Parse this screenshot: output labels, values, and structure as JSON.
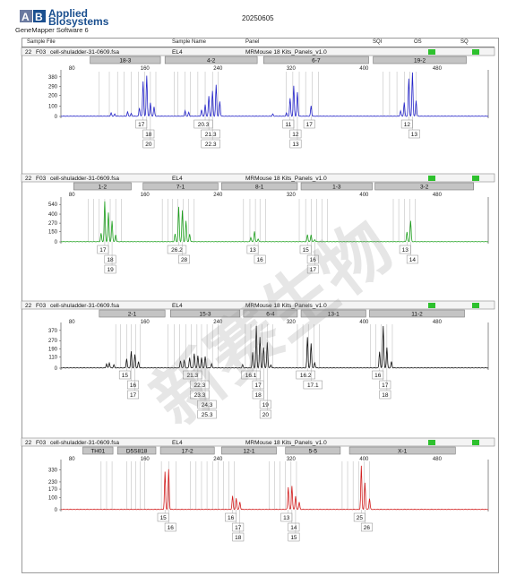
{
  "header": {
    "brand_line1": "Applied",
    "brand_line2": "Biosystems",
    "software": "GeneMapper Software 6",
    "date": "20250605",
    "columns": {
      "sample_file": "Sample File",
      "sample_name": "Sample Name",
      "panel": "Panel",
      "sqi": "SQI",
      "os": "OS",
      "sq": "SQ"
    }
  },
  "watermark": "新赛生物",
  "colors": {
    "blue": "#2323c8",
    "green": "#1ea01e",
    "black": "#111111",
    "red": "#d21e1e",
    "flag": "#2ec12e",
    "bin": "#b4b4b4",
    "marker_fill": "#c4c4c4"
  },
  "chart_data": [
    {
      "type": "line",
      "info": {
        "well": "22",
        "cap": "F03",
        "sample_file": "cell-shuladder-31-0609.fsa",
        "sample_name": "EL4",
        "panel": "MRMouse 18 Kits_Panels_v1.0"
      },
      "color": "#2323c8",
      "markers": [
        {
          "label": "18-3",
          "start": 100,
          "end": 177
        },
        {
          "label": "4-2",
          "start": 182,
          "end": 283
        },
        {
          "label": "6-7",
          "start": 290,
          "end": 405
        },
        {
          "label": "19-2",
          "start": 410,
          "end": 512
        }
      ],
      "x_ticks": [
        80,
        160,
        240,
        320,
        400,
        480
      ],
      "xlim": [
        68,
        536
      ],
      "y_ticks": [
        0,
        100,
        200,
        290,
        380
      ],
      "ylim": [
        0,
        430
      ],
      "peaks": [
        {
          "x": 123,
          "h": 30
        },
        {
          "x": 127,
          "h": 20
        },
        {
          "x": 141,
          "h": 40
        },
        {
          "x": 145,
          "h": 25
        },
        {
          "x": 154,
          "h": 80
        },
        {
          "x": 158,
          "h": 335
        },
        {
          "x": 162,
          "h": 390
        },
        {
          "x": 166,
          "h": 130
        },
        {
          "x": 170,
          "h": 90
        },
        {
          "x": 204,
          "h": 50
        },
        {
          "x": 208,
          "h": 35
        },
        {
          "x": 222,
          "h": 60
        },
        {
          "x": 226,
          "h": 110
        },
        {
          "x": 230,
          "h": 190
        },
        {
          "x": 234,
          "h": 240
        },
        {
          "x": 238,
          "h": 300
        },
        {
          "x": 242,
          "h": 140
        },
        {
          "x": 300,
          "h": 20
        },
        {
          "x": 315,
          "h": 30
        },
        {
          "x": 319,
          "h": 170
        },
        {
          "x": 323,
          "h": 290
        },
        {
          "x": 327,
          "h": 230
        },
        {
          "x": 342,
          "h": 100
        },
        {
          "x": 440,
          "h": 50
        },
        {
          "x": 444,
          "h": 130
        },
        {
          "x": 449,
          "h": 360
        },
        {
          "x": 453,
          "h": 420
        },
        {
          "x": 457,
          "h": 150
        }
      ],
      "bins": [
        110,
        121,
        130,
        137,
        145,
        153,
        160,
        166,
        172,
        192,
        196,
        204,
        210,
        218,
        226,
        234,
        240,
        315,
        322,
        329,
        336,
        343,
        350,
        421,
        428,
        436,
        444,
        450,
        457
      ],
      "alleles": [
        {
          "x": 158,
          "row": 0,
          "label": "17"
        },
        {
          "x": 162,
          "row": 1,
          "label": "18"
        },
        {
          "x": 166,
          "row": 2,
          "label": "20"
        },
        {
          "x": 226,
          "row": 0,
          "label": "20.3"
        },
        {
          "x": 230,
          "row": 1,
          "label": "21.3"
        },
        {
          "x": 234,
          "row": 2,
          "label": "22.3"
        },
        {
          "x": 319,
          "row": 0,
          "label": "11"
        },
        {
          "x": 323,
          "row": 1,
          "label": "12"
        },
        {
          "x": 327,
          "row": 2,
          "label": "13"
        },
        {
          "x": 342,
          "row": 0,
          "label": "17"
        },
        {
          "x": 449,
          "row": 0,
          "label": "12"
        },
        {
          "x": 453,
          "row": 1,
          "label": "13"
        }
      ]
    },
    {
      "type": "line",
      "info": {
        "well": "22",
        "cap": "F03",
        "sample_file": "cell-shuladder-31-0609.fsa",
        "sample_name": "EL4",
        "panel": "MRMouse 18 Kits_Panels_v1.0"
      },
      "color": "#1ea01e",
      "markers": [
        {
          "label": "1-2",
          "start": 82,
          "end": 145
        },
        {
          "label": "7-1",
          "start": 158,
          "end": 240
        },
        {
          "label": "8-1",
          "start": 244,
          "end": 327
        },
        {
          "label": "1-3",
          "start": 331,
          "end": 409
        },
        {
          "label": "3-2",
          "start": 412,
          "end": 520
        }
      ],
      "x_ticks": [
        80,
        160,
        240,
        320,
        400,
        480
      ],
      "xlim": [
        68,
        536
      ],
      "y_ticks": [
        0,
        150,
        270,
        400,
        540
      ],
      "ylim": [
        0,
        620
      ],
      "peaks": [
        {
          "x": 112,
          "h": 120
        },
        {
          "x": 116,
          "h": 580
        },
        {
          "x": 120,
          "h": 420
        },
        {
          "x": 124,
          "h": 300
        },
        {
          "x": 128,
          "h": 100
        },
        {
          "x": 193,
          "h": 110
        },
        {
          "x": 197,
          "h": 500
        },
        {
          "x": 201,
          "h": 450
        },
        {
          "x": 205,
          "h": 300
        },
        {
          "x": 209,
          "h": 110
        },
        {
          "x": 276,
          "h": 60
        },
        {
          "x": 280,
          "h": 150
        },
        {
          "x": 284,
          "h": 40
        },
        {
          "x": 338,
          "h": 100
        },
        {
          "x": 342,
          "h": 100
        },
        {
          "x": 346,
          "h": 30
        },
        {
          "x": 447,
          "h": 140
        },
        {
          "x": 451,
          "h": 300
        }
      ],
      "bins": [
        98,
        104,
        110,
        116,
        122,
        128,
        134,
        179,
        185,
        190,
        196,
        202,
        208,
        214,
        268,
        275,
        281,
        286,
        292,
        329,
        336,
        342,
        348,
        354,
        360,
        432,
        438,
        444,
        450,
        456
      ],
      "alleles": [
        {
          "x": 116,
          "row": 0,
          "label": "17"
        },
        {
          "x": 120,
          "row": 1,
          "label": "18"
        },
        {
          "x": 124,
          "row": 2,
          "label": "19"
        },
        {
          "x": 197,
          "row": 0,
          "label": "26.2"
        },
        {
          "x": 201,
          "row": 1,
          "label": "28"
        },
        {
          "x": 280,
          "row": 0,
          "label": "13"
        },
        {
          "x": 284,
          "row": 1,
          "label": "16"
        },
        {
          "x": 338,
          "row": 0,
          "label": "15"
        },
        {
          "x": 342,
          "row": 1,
          "label": "16"
        },
        {
          "x": 346,
          "row": 2,
          "label": "17"
        },
        {
          "x": 447,
          "row": 0,
          "label": "13"
        },
        {
          "x": 451,
          "row": 1,
          "label": "14"
        }
      ]
    },
    {
      "type": "line",
      "info": {
        "well": "22",
        "cap": "F03",
        "sample_file": "cell-shuladder-31-0609.fsa",
        "sample_name": "EL4",
        "panel": "MRMouse 18 Kits_Panels_v1.0"
      },
      "color": "#111111",
      "markers": [
        {
          "label": "2-1",
          "start": 110,
          "end": 182
        },
        {
          "label": "15-3",
          "start": 188,
          "end": 264
        },
        {
          "label": "6-4",
          "start": 268,
          "end": 327
        },
        {
          "label": "13-1",
          "start": 331,
          "end": 402
        },
        {
          "label": "11-2",
          "start": 406,
          "end": 510
        }
      ],
      "x_ticks": [
        80,
        160,
        240,
        320,
        400,
        480
      ],
      "xlim": [
        68,
        536
      ],
      "y_ticks": [
        0,
        110,
        190,
        270,
        370
      ],
      "ylim": [
        0,
        430
      ],
      "peaks": [
        {
          "x": 118,
          "h": 40
        },
        {
          "x": 121,
          "h": 50
        },
        {
          "x": 126,
          "h": 30
        },
        {
          "x": 140,
          "h": 90
        },
        {
          "x": 145,
          "h": 160
        },
        {
          "x": 149,
          "h": 130
        },
        {
          "x": 153,
          "h": 60
        },
        {
          "x": 199,
          "h": 70
        },
        {
          "x": 203,
          "h": 80
        },
        {
          "x": 209,
          "h": 100
        },
        {
          "x": 214,
          "h": 140
        },
        {
          "x": 218,
          "h": 120
        },
        {
          "x": 222,
          "h": 100
        },
        {
          "x": 226,
          "h": 110
        },
        {
          "x": 233,
          "h": 40
        },
        {
          "x": 267,
          "h": 30
        },
        {
          "x": 278,
          "h": 150
        },
        {
          "x": 282,
          "h": 410
        },
        {
          "x": 286,
          "h": 300
        },
        {
          "x": 290,
          "h": 200
        },
        {
          "x": 294,
          "h": 250
        },
        {
          "x": 298,
          "h": 30
        },
        {
          "x": 338,
          "h": 300
        },
        {
          "x": 342,
          "h": 240
        },
        {
          "x": 346,
          "h": 50
        },
        {
          "x": 417,
          "h": 160
        },
        {
          "x": 421,
          "h": 410
        },
        {
          "x": 425,
          "h": 200
        },
        {
          "x": 430,
          "h": 60
        }
      ],
      "bins": [
        128,
        133,
        140,
        145,
        150,
        155,
        185,
        192,
        198,
        205,
        211,
        217,
        222,
        228,
        234,
        240,
        270,
        276,
        282,
        288,
        294,
        300,
        327,
        333,
        339,
        345,
        351,
        407,
        413,
        419,
        425,
        431
      ],
      "alleles": [
        {
          "x": 140,
          "row": 0,
          "label": "15"
        },
        {
          "x": 145,
          "row": 1,
          "label": "16"
        },
        {
          "x": 149,
          "row": 2,
          "label": "17"
        },
        {
          "x": 214,
          "row": 0,
          "label": "21.3"
        },
        {
          "x": 218,
          "row": 1,
          "label": "22.3"
        },
        {
          "x": 222,
          "row": 2,
          "label": "23.3"
        },
        {
          "x": 226,
          "row": 3,
          "label": "24.3"
        },
        {
          "x": 230,
          "row": 4,
          "label": "25.3"
        },
        {
          "x": 278,
          "row": 0,
          "label": "16.1"
        },
        {
          "x": 282,
          "row": 1,
          "label": "17"
        },
        {
          "x": 286,
          "row": 2,
          "label": "18"
        },
        {
          "x": 290,
          "row": 3,
          "label": "19"
        },
        {
          "x": 294,
          "row": 4,
          "label": "20"
        },
        {
          "x": 338,
          "row": 0,
          "label": "16.2"
        },
        {
          "x": 342,
          "row": 1,
          "label": "17.1"
        },
        {
          "x": 417,
          "row": 0,
          "label": "16"
        },
        {
          "x": 421,
          "row": 1,
          "label": "17"
        },
        {
          "x": 425,
          "row": 2,
          "label": "18"
        }
      ]
    },
    {
      "type": "line",
      "info": {
        "well": "22",
        "cap": "F03",
        "sample_file": "cell-shuladder-31-0609.fsa",
        "sample_name": "EL4",
        "panel": "MRMouse 18 Kits_Panels_v1.0"
      },
      "color": "#d21e1e",
      "markers": [
        {
          "label": "TH01",
          "start": 92,
          "end": 125
        },
        {
          "label": "D5S818",
          "start": 130,
          "end": 172
        },
        {
          "label": "17-2",
          "start": 177,
          "end": 236
        },
        {
          "label": "12-1",
          "start": 244,
          "end": 304
        },
        {
          "label": "5-5",
          "start": 314,
          "end": 374
        },
        {
          "label": "X-1",
          "start": 384,
          "end": 500
        }
      ],
      "x_ticks": [
        80,
        160,
        240,
        320,
        400,
        480
      ],
      "xlim": [
        68,
        536
      ],
      "y_ticks": [
        0,
        100,
        170,
        230,
        330
      ],
      "ylim": [
        0,
        400
      ],
      "peaks": [
        {
          "x": 182,
          "h": 310
        },
        {
          "x": 186,
          "h": 330
        },
        {
          "x": 256,
          "h": 110
        },
        {
          "x": 260,
          "h": 90
        },
        {
          "x": 264,
          "h": 60
        },
        {
          "x": 317,
          "h": 185
        },
        {
          "x": 321,
          "h": 195
        },
        {
          "x": 325,
          "h": 110
        },
        {
          "x": 329,
          "h": 60
        },
        {
          "x": 397,
          "h": 360
        },
        {
          "x": 401,
          "h": 220
        },
        {
          "x": 406,
          "h": 90
        }
      ],
      "bins": [
        112,
        118,
        124,
        140,
        145,
        150,
        155,
        160,
        178,
        186,
        194,
        210,
        216,
        222,
        228,
        234,
        240,
        246,
        252,
        258,
        296,
        302,
        308,
        314,
        320,
        326,
        376,
        382,
        388,
        394,
        400,
        406
      ],
      "alleles": [
        {
          "x": 182,
          "row": 0,
          "label": "15"
        },
        {
          "x": 186,
          "row": 1,
          "label": "16"
        },
        {
          "x": 256,
          "row": 0,
          "label": "16"
        },
        {
          "x": 260,
          "row": 1,
          "label": "17"
        },
        {
          "x": 264,
          "row": 2,
          "label": "18"
        },
        {
          "x": 317,
          "row": 0,
          "label": "13"
        },
        {
          "x": 321,
          "row": 1,
          "label": "14"
        },
        {
          "x": 325,
          "row": 2,
          "label": "15"
        },
        {
          "x": 397,
          "row": 0,
          "label": "25"
        },
        {
          "x": 401,
          "row": 1,
          "label": "26"
        }
      ]
    }
  ]
}
